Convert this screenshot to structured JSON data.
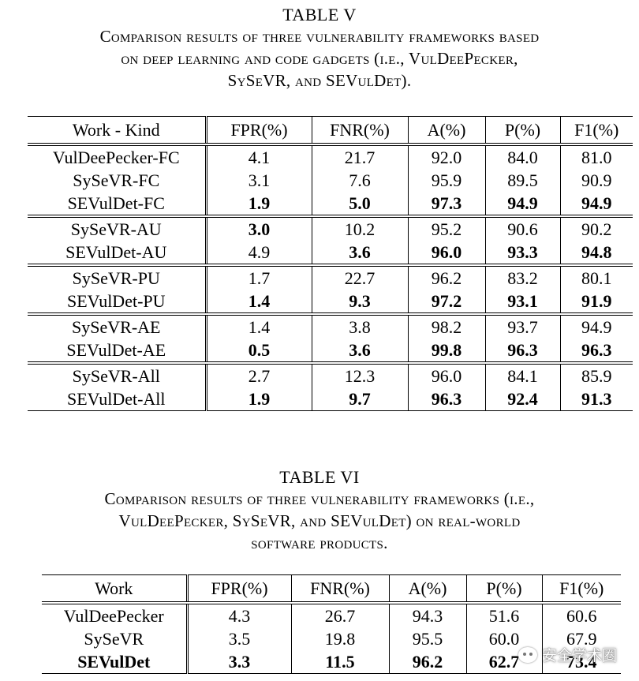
{
  "table5": {
    "number": "TABLE V",
    "caption_lines": [
      "Comparison results of three vulnerability frameworks based",
      "on deep learning and code gadgets (i.e., VulDeePecker,",
      "SySeVR, and SEVulDet)."
    ],
    "headers": [
      "Work - Kind",
      "FPR(%)",
      "FNR(%)",
      "A(%)",
      "P(%)",
      "F1(%)"
    ],
    "groups": [
      [
        {
          "cells": [
            "VulDeePecker-FC",
            "4.1",
            "21.7",
            "92.0",
            "84.0",
            "81.0"
          ],
          "bold": [
            false,
            false,
            false,
            false,
            false,
            false
          ]
        },
        {
          "cells": [
            "SySeVR-FC",
            "3.1",
            "7.6",
            "95.9",
            "89.5",
            "90.9"
          ],
          "bold": [
            false,
            false,
            false,
            false,
            false,
            false
          ]
        },
        {
          "cells": [
            "SEVulDet-FC",
            "1.9",
            "5.0",
            "97.3",
            "94.9",
            "94.9"
          ],
          "bold": [
            false,
            true,
            true,
            true,
            true,
            true
          ]
        }
      ],
      [
        {
          "cells": [
            "SySeVR-AU",
            "3.0",
            "10.2",
            "95.2",
            "90.6",
            "90.2"
          ],
          "bold": [
            false,
            true,
            false,
            false,
            false,
            false
          ]
        },
        {
          "cells": [
            "SEVulDet-AU",
            "4.9",
            "3.6",
            "96.0",
            "93.3",
            "94.8"
          ],
          "bold": [
            false,
            false,
            true,
            true,
            true,
            true
          ]
        }
      ],
      [
        {
          "cells": [
            "SySeVR-PU",
            "1.7",
            "22.7",
            "96.2",
            "83.2",
            "80.1"
          ],
          "bold": [
            false,
            false,
            false,
            false,
            false,
            false
          ]
        },
        {
          "cells": [
            "SEVulDet-PU",
            "1.4",
            "9.3",
            "97.2",
            "93.1",
            "91.9"
          ],
          "bold": [
            false,
            true,
            true,
            true,
            true,
            true
          ]
        }
      ],
      [
        {
          "cells": [
            "SySeVR-AE",
            "1.4",
            "3.8",
            "98.2",
            "93.7",
            "94.9"
          ],
          "bold": [
            false,
            false,
            false,
            false,
            false,
            false
          ]
        },
        {
          "cells": [
            "SEVulDet-AE",
            "0.5",
            "3.6",
            "99.8",
            "96.3",
            "96.3"
          ],
          "bold": [
            false,
            true,
            true,
            true,
            true,
            true
          ]
        }
      ],
      [
        {
          "cells": [
            "SySeVR-All",
            "2.7",
            "12.3",
            "96.0",
            "84.1",
            "85.9"
          ],
          "bold": [
            false,
            false,
            false,
            false,
            false,
            false
          ]
        },
        {
          "cells": [
            "SEVulDet-All",
            "1.9",
            "9.7",
            "96.3",
            "92.4",
            "91.3"
          ],
          "bold": [
            false,
            true,
            true,
            true,
            true,
            true
          ]
        }
      ]
    ]
  },
  "table6": {
    "number": "TABLE VI",
    "caption_lines": [
      "Comparison results of three vulnerability frameworks (i.e.,",
      "VulDeePecker, SySeVR, and SEVulDet) on real-world",
      "software products."
    ],
    "headers": [
      "Work",
      "FPR(%)",
      "FNR(%)",
      "A(%)",
      "P(%)",
      "F1(%)"
    ],
    "rows": [
      {
        "cells": [
          "VulDeePecker",
          "4.3",
          "26.7",
          "94.3",
          "51.6",
          "60.6"
        ],
        "bold": [
          false,
          false,
          false,
          false,
          false,
          false
        ]
      },
      {
        "cells": [
          "SySeVR",
          "3.5",
          "19.8",
          "95.5",
          "60.0",
          "67.9"
        ],
        "bold": [
          false,
          false,
          false,
          false,
          false,
          false
        ]
      },
      {
        "cells": [
          "SEVulDet",
          "3.3",
          "11.5",
          "96.2",
          "62.7",
          "73.4"
        ],
        "bold": [
          true,
          true,
          true,
          true,
          true,
          true
        ]
      }
    ]
  },
  "watermark": {
    "icon": "wechat-icon",
    "text": "安全学术圈"
  }
}
